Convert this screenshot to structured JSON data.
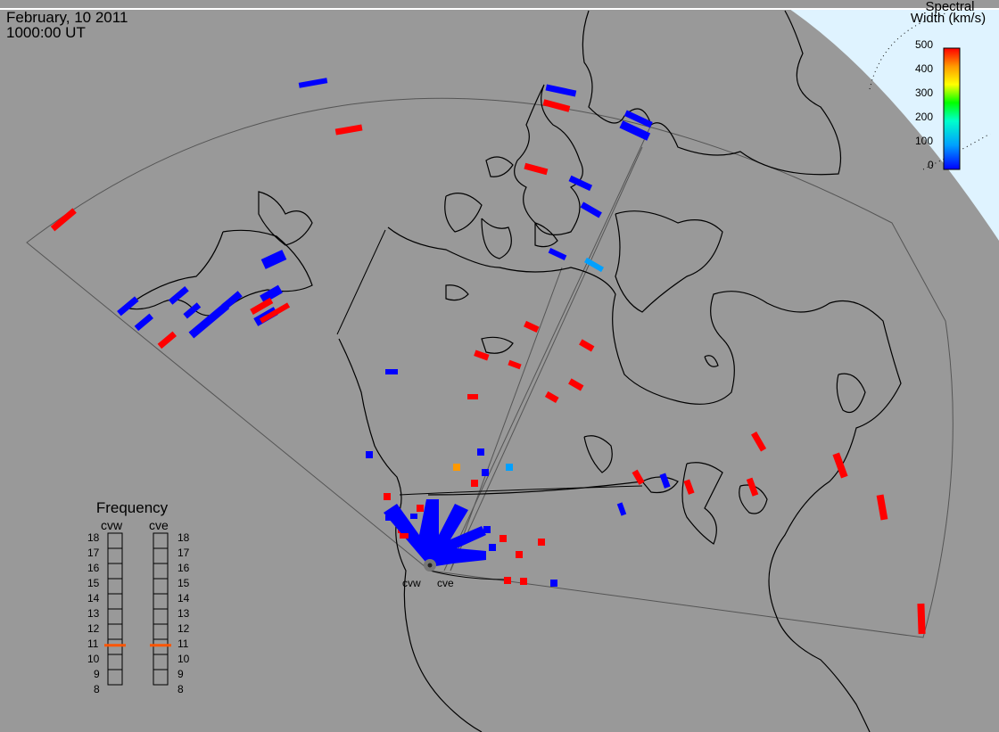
{
  "header": {
    "date": "February, 10 2011",
    "time": "1000:00 UT"
  },
  "colorbar": {
    "title_line1": "Spectral",
    "title_line2": "Width (km/s)",
    "ticks": [
      "500",
      "400",
      "300",
      "200",
      "100",
      "0"
    ],
    "colors": [
      "#0000ff",
      "#00a0ff",
      "#00ffcc",
      "#00ff00",
      "#ffff00",
      "#ff9900",
      "#ff0000"
    ]
  },
  "radars": {
    "west": "cvw",
    "east": "cve"
  },
  "frequency": {
    "title": "Frequency",
    "scale": [
      "18",
      "17",
      "16",
      "15",
      "14",
      "13",
      "12",
      "11",
      "10",
      "9",
      "8"
    ],
    "cvw_mhz": 10.6,
    "cve_mhz": 10.6,
    "marker_color": "#ff5500"
  },
  "colors": {
    "background": "#999999",
    "sea_sky": "#dff3ff",
    "low_width": "#0000ff",
    "high_width": "#ff0000"
  }
}
